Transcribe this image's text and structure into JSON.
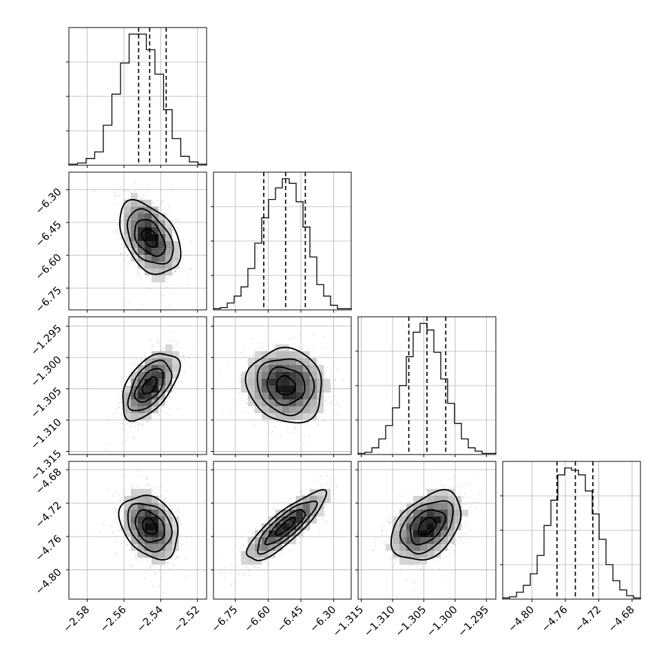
{
  "chart_data": {
    "type": "corner",
    "grid": true,
    "parameters": [
      {
        "range": [
          -2.59,
          -2.515
        ],
        "median": -2.546,
        "q16": -2.552,
        "q84": -2.537,
        "hist": [
          0.5,
          1,
          3,
          6,
          18,
          32,
          46,
          59,
          59,
          52,
          41,
          25,
          12,
          4,
          1.5,
          0.5
        ],
        "ticks": [
          -2.58,
          -2.56,
          -2.54,
          -2.52
        ],
        "tick_labels": [
          "−2.58",
          "−2.56",
          "−2.54",
          "−2.52"
        ]
      },
      {
        "range": [
          -6.85,
          -6.22
        ],
        "median": -6.52,
        "q16": -6.62,
        "q84": -6.43,
        "hist": [
          0.5,
          1,
          3,
          6,
          10,
          18,
          29,
          40,
          48,
          53,
          57,
          55,
          47,
          36,
          23,
          11,
          6,
          2,
          0.5,
          0.5
        ],
        "ticks": [
          -6.75,
          -6.6,
          -6.45,
          -6.3
        ],
        "tick_labels": [
          "−6.75",
          "−6.60",
          "−6.45",
          "−6.30"
        ]
      },
      {
        "range": [
          -1.3155,
          -1.2935
        ],
        "median": -1.3045,
        "q16": -1.3074,
        "q84": -1.3015,
        "hist": [
          0.5,
          1,
          3,
          7,
          13,
          21,
          31,
          44,
          55,
          59,
          56,
          46,
          34,
          23,
          14,
          7,
          3,
          1.5,
          0.5,
          0.5
        ],
        "ticks": [
          -1.315,
          -1.31,
          -1.305,
          -1.3,
          -1.295
        ],
        "tick_labels": [
          "−1.315",
          "−1.310",
          "−1.305",
          "−1.300",
          "−1.295"
        ]
      },
      {
        "range": [
          -4.835,
          -4.67
        ],
        "median": -4.748,
        "q16": -4.77,
        "q84": -4.727,
        "hist": [
          0.5,
          1,
          3,
          6,
          11,
          19,
          32,
          43,
          54,
          57,
          56,
          54,
          47,
          37,
          26,
          15,
          8,
          4,
          1.5,
          0.5
        ],
        "ticks": [
          -4.8,
          -4.76,
          -4.72,
          -4.68
        ],
        "tick_labels": [
          "−4.80",
          "−4.76",
          "−4.72",
          "−4.68"
        ]
      }
    ],
    "correlations": {
      "1-0": -0.45,
      "2-0": 0.55,
      "2-1": -0.1,
      "3-0": -0.3,
      "3-1": 0.85,
      "3-2": 0.4
    }
  }
}
